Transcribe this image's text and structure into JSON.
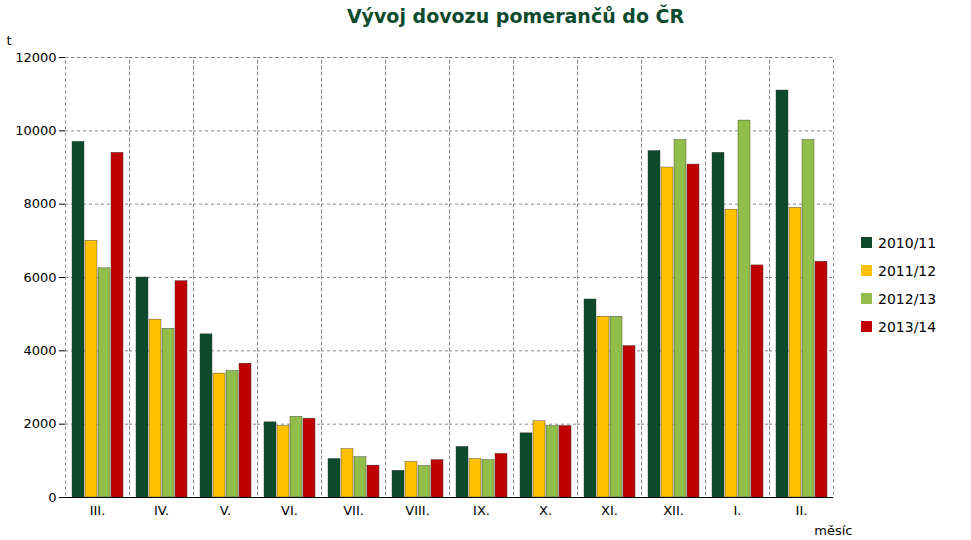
{
  "chart_data": {
    "type": "bar",
    "title": "Vývoj dovozu pomerančů do ČR",
    "y_label": "t",
    "x_label": "měsíc",
    "categories": [
      "III.",
      "IV.",
      "V.",
      "VI.",
      "VII.",
      "VIII.",
      "IX.",
      "X.",
      "XI.",
      "XII.",
      "I.",
      "II."
    ],
    "series": [
      {
        "name": "2010/11",
        "color": "#0b4a2c",
        "values": [
          9700,
          6000,
          4450,
          2050,
          1050,
          730,
          1380,
          1750,
          5400,
          9450,
          9400,
          11100
        ]
      },
      {
        "name": "2011/12",
        "color": "#ffc000",
        "values": [
          7000,
          4850,
          3380,
          1950,
          1320,
          970,
          1050,
          2080,
          4930,
          9000,
          7850,
          7900
        ]
      },
      {
        "name": "2012/13",
        "color": "#92bd4a",
        "values": [
          6250,
          4600,
          3450,
          2200,
          1100,
          860,
          1020,
          1950,
          4930,
          9750,
          10280,
          9750
        ]
      },
      {
        "name": "2013/14",
        "color": "#c00000",
        "values": [
          9400,
          5900,
          3650,
          2150,
          870,
          1020,
          1190,
          1950,
          4130,
          9080,
          6330,
          6430
        ]
      }
    ],
    "ylim": [
      0,
      12000
    ],
    "yticks": [
      0,
      2000,
      4000,
      6000,
      8000,
      10000,
      12000
    ],
    "grid": true,
    "legend": "right"
  }
}
